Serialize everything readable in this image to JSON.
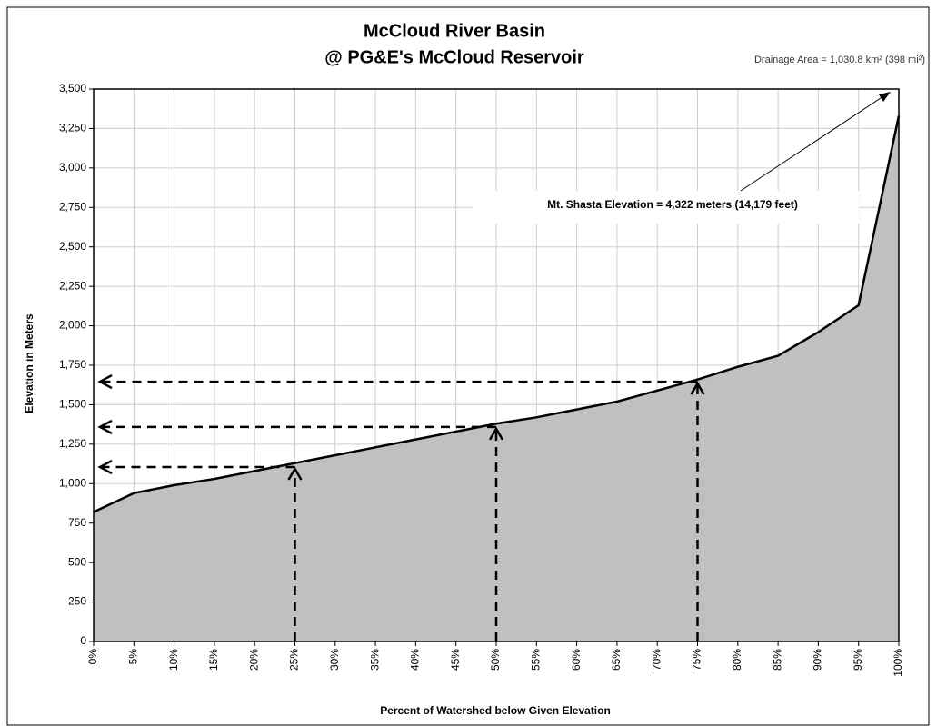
{
  "chart_data": {
    "type": "area",
    "title": [
      "McCloud River Basin",
      "@ PG&E's McCloud Reservoir"
    ],
    "subtitle": "Drainage Area = 1,030.8 km² (398 mi²)",
    "x_label": "Percent of Watershed below Given Elevation",
    "y_label": "Elevation in Meters",
    "annotation": "Mt. Shasta Elevation = 4,322 meters (14,179 feet)",
    "x": [
      0,
      5,
      10,
      15,
      20,
      25,
      30,
      35,
      40,
      45,
      50,
      55,
      60,
      65,
      70,
      75,
      80,
      85,
      90,
      95,
      100
    ],
    "series": [
      {
        "color": "#c0c0c0",
        "values": [
          820,
          940,
          990,
          1030,
          1080,
          1130,
          1180,
          1230,
          1280,
          1330,
          1380,
          1420,
          1470,
          1520,
          1590,
          1660,
          1740,
          1810,
          1960,
          2130,
          3330
        ]
      }
    ],
    "reference_lines": [
      {
        "x": 25,
        "y": 1105
      },
      {
        "x": 50,
        "y": 1359
      },
      {
        "x": 75,
        "y": 1646
      }
    ],
    "xlim": [
      0,
      100
    ],
    "xticks": [
      {
        "value": 0,
        "label": "0%"
      },
      {
        "value": 5,
        "label": "5%"
      },
      {
        "value": 10,
        "label": "10%"
      },
      {
        "value": 15,
        "label": "15%"
      },
      {
        "value": 20,
        "label": "20%"
      },
      {
        "value": 25,
        "label": "25%"
      },
      {
        "value": 30,
        "label": "30%"
      },
      {
        "value": 35,
        "label": "35%"
      },
      {
        "value": 40,
        "label": "40%"
      },
      {
        "value": 45,
        "label": "45%"
      },
      {
        "value": 50,
        "label": "50%"
      },
      {
        "value": 55,
        "label": "55%"
      },
      {
        "value": 60,
        "label": "60%"
      },
      {
        "value": 65,
        "label": "65%"
      },
      {
        "value": 70,
        "label": "70%"
      },
      {
        "value": 75,
        "label": "75%"
      },
      {
        "value": 80,
        "label": "80%"
      },
      {
        "value": 85,
        "label": "85%"
      },
      {
        "value": 90,
        "label": "90%"
      },
      {
        "value": 95,
        "label": "95%"
      },
      {
        "value": 100,
        "label": "100%"
      }
    ],
    "ylim": [
      0,
      3500
    ],
    "yticks": [
      0,
      250,
      500,
      750,
      {
        "value": 1000,
        "label": "1,000"
      },
      {
        "value": 1250,
        "label": "1,250"
      },
      {
        "value": 1500,
        "label": "1,500"
      },
      {
        "value": 1750,
        "label": "1,750"
      },
      {
        "value": 2000,
        "label": "2,000"
      },
      {
        "value": 2250,
        "label": "2,250"
      },
      {
        "value": 2500,
        "label": "2,500"
      },
      {
        "value": 2750,
        "label": "2,750"
      },
      {
        "value": 3000,
        "label": "3,000"
      },
      {
        "value": 3250,
        "label": "3,250"
      },
      {
        "value": 3500,
        "label": "3,500"
      }
    ],
    "grid": true
  }
}
